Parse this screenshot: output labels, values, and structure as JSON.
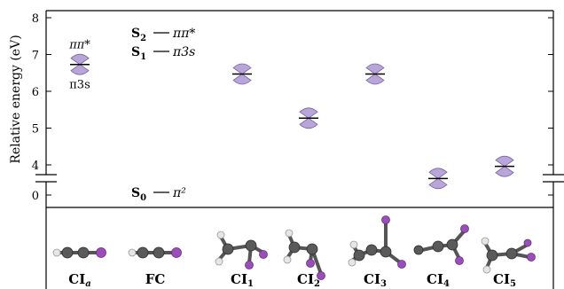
{
  "chart_data": {
    "type": "scatter",
    "ylabel": "Relative energy (eV)",
    "y_ticks_upper": [
      "4",
      "5",
      "6",
      "7",
      "8"
    ],
    "y_ticks_lower": [
      "0"
    ],
    "ylim_upper": [
      3.5,
      8.2
    ],
    "ylim_lower": [
      -0.25,
      0.55
    ],
    "axis_break": true,
    "categories": [
      "CIa",
      "FC",
      "CI1",
      "CI2",
      "CI3",
      "CI4",
      "CI5"
    ],
    "category_labels": [
      {
        "main": "CI",
        "sub": "a"
      },
      {
        "main": "FC",
        "sub": ""
      },
      {
        "main": "CI",
        "sub": "1"
      },
      {
        "main": "CI",
        "sub": "2"
      },
      {
        "main": "CI",
        "sub": "3"
      },
      {
        "main": "CI",
        "sub": "4"
      },
      {
        "main": "CI",
        "sub": "5"
      }
    ],
    "points": [
      {
        "category": "CIa",
        "energy": 6.73
      },
      {
        "category": "CI1",
        "energy": 6.47
      },
      {
        "category": "CI2",
        "energy": 5.27
      },
      {
        "category": "CI3",
        "energy": 6.47
      },
      {
        "category": "CI4",
        "energy": 3.63
      },
      {
        "category": "CI5",
        "energy": 3.96
      }
    ],
    "point_labels": {
      "upper": "ππ*",
      "lower": "π3s"
    },
    "legend": [
      {
        "state": "S",
        "sub": "2",
        "desc": "ππ*"
      },
      {
        "state": "S",
        "sub": "1",
        "desc": "π3s"
      },
      {
        "state": "S",
        "sub": "0",
        "desc": "π²"
      }
    ],
    "marker_color": "#b9a6d8",
    "marker_stroke": "#7a5fa6"
  }
}
